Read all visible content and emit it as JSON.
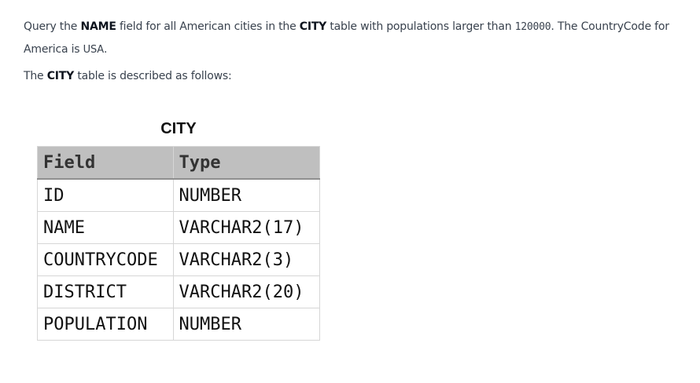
{
  "problem": {
    "p1": {
      "t1": "Query the ",
      "b1": "NAME",
      "t2": " field for all American cities in the ",
      "b2": "CITY",
      "t3": " table with populations larger than ",
      "m1": "120000",
      "t4": ". The CountryCode for America is ",
      "s1": "USA",
      "t5": "."
    },
    "p2": {
      "t1": "The ",
      "b1": "CITY",
      "t2": " table is described as follows:"
    }
  },
  "table": {
    "title": "CITY",
    "headers": [
      "Field",
      "Type"
    ],
    "rows": [
      [
        "ID",
        "NUMBER"
      ],
      [
        "NAME",
        "VARCHAR2(17)"
      ],
      [
        "COUNTRYCODE",
        "VARCHAR2(3)"
      ],
      [
        "DISTRICT",
        "VARCHAR2(20)"
      ],
      [
        "POPULATION",
        "NUMBER"
      ]
    ]
  }
}
